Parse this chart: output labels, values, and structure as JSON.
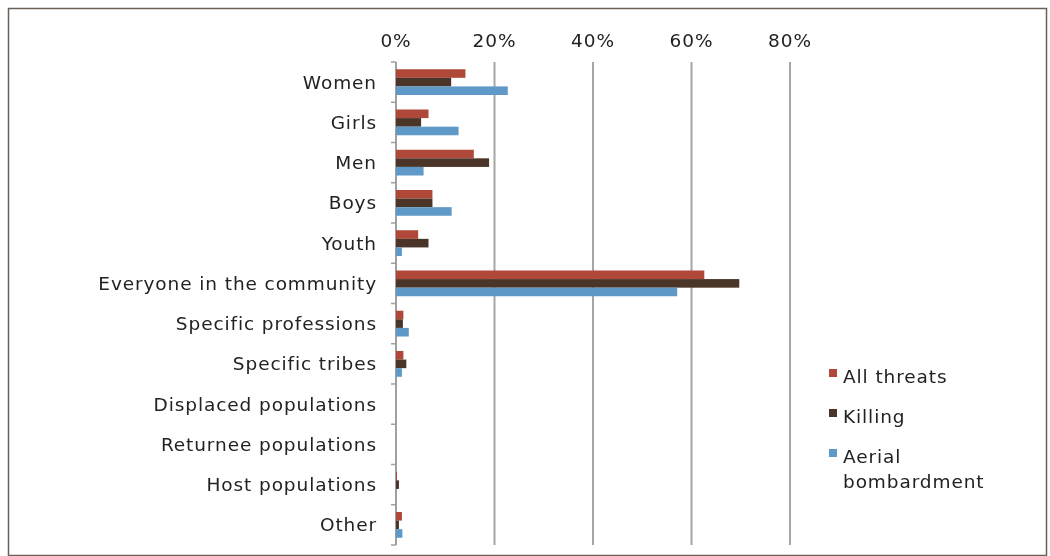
{
  "chart_data": {
    "type": "bar",
    "orientation": "horizontal",
    "categories": [
      "Women",
      "Girls",
      "Men",
      "Boys",
      "Youth",
      "Everyone in the community",
      "Specific professions",
      "Specific tribes",
      "Displaced populations",
      "Returnee populations",
      "Host populations",
      "Other"
    ],
    "series": [
      {
        "name": "All threats",
        "color": "#b0483a",
        "values": [
          14.1,
          6.6,
          15.8,
          7.4,
          4.5,
          62.6,
          1.5,
          1.5,
          0,
          0,
          0.2,
          1.2
        ]
      },
      {
        "name": "Killing",
        "color": "#4b3428",
        "values": [
          11.2,
          5.1,
          18.9,
          7.4,
          6.6,
          69.7,
          1.4,
          2.1,
          0,
          0,
          0.6,
          0.6
        ]
      },
      {
        "name": "Aerial bombardment",
        "color": "#5f99c8",
        "values": [
          22.7,
          12.7,
          5.6,
          11.3,
          1.2,
          57.1,
          2.6,
          1.2,
          0,
          0,
          0,
          1.3
        ]
      }
    ],
    "xlim": [
      0,
      80
    ],
    "xticks": [
      {
        "value": 0,
        "label": "0%"
      },
      {
        "value": 20,
        "label": "20%"
      },
      {
        "value": 40,
        "label": "40%"
      },
      {
        "value": 60,
        "label": "60%"
      },
      {
        "value": 80,
        "label": "80%"
      }
    ],
    "grid": "x",
    "legend": "right"
  }
}
